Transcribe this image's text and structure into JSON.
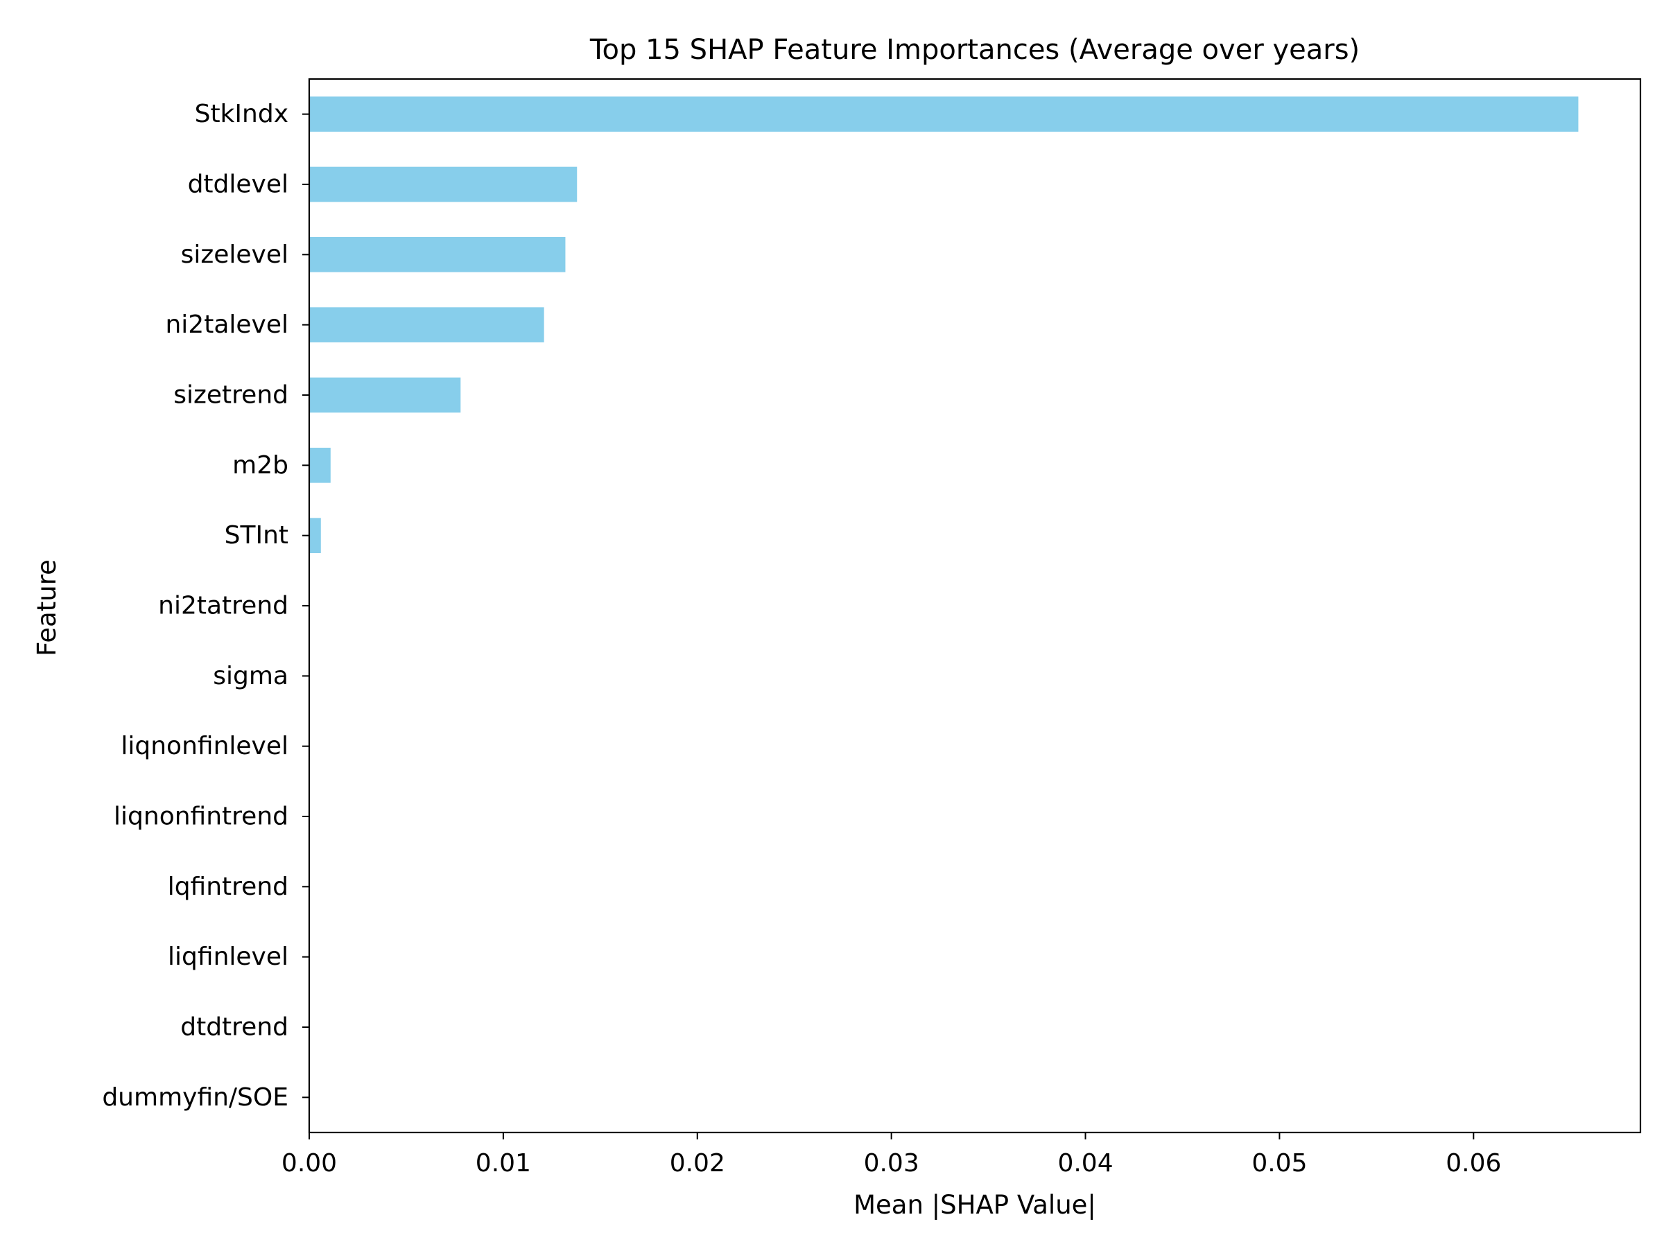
{
  "chart_data": {
    "type": "bar",
    "orientation": "horizontal",
    "title": "Top 15 SHAP Feature Importances (Average over years)",
    "xlabel": "Mean |SHAP Value|",
    "ylabel": "Feature",
    "xlim": [
      0,
      0.0686
    ],
    "xticks": [
      0,
      0.01,
      0.02,
      0.03,
      0.04,
      0.05,
      0.06
    ],
    "xtick_labels": [
      "0.00",
      "0.01",
      "0.02",
      "0.03",
      "0.04",
      "0.05",
      "0.06"
    ],
    "categories": [
      "StkIndx",
      "dtdlevel",
      "sizelevel",
      "ni2talevel",
      "sizetrend",
      "m2b",
      "STInt",
      "ni2tatrend",
      "sigma",
      "liqnonfinlevel",
      "liqnonfintrend",
      "lqfintrend",
      "liqfinlevel",
      "dtdtrend",
      "dummyfin/SOE"
    ],
    "values": [
      0.0654,
      0.0138,
      0.0132,
      0.0121,
      0.0078,
      0.0011,
      0.0006,
      0,
      0,
      0,
      0,
      0,
      0,
      0,
      0
    ],
    "bar_color": "#87ceeb",
    "grid": false,
    "legend": "none"
  }
}
